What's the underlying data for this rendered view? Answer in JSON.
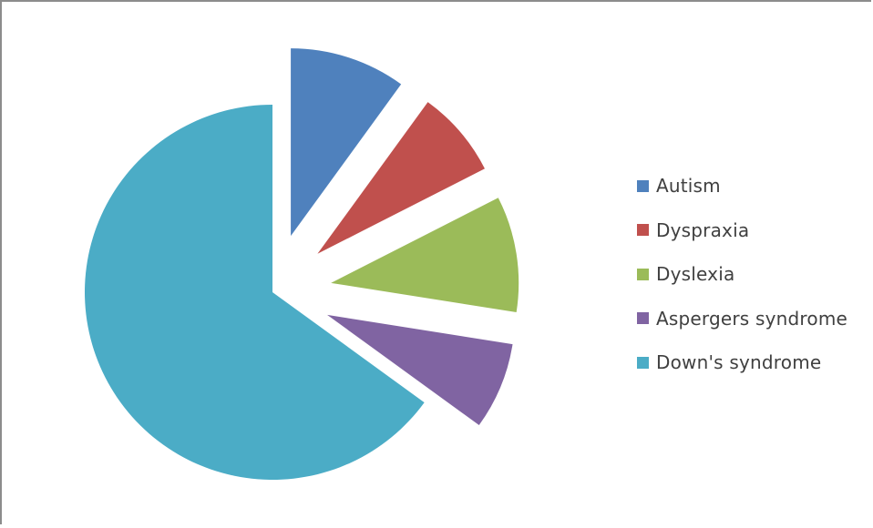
{
  "chart_data": {
    "type": "pie",
    "title": "",
    "exploded": true,
    "legend_position": "right",
    "categories": [
      "Autism",
      "Dyspraxia",
      "Dyslexia",
      "Aspergers syndrome",
      "Down's syndrome"
    ],
    "values": [
      10,
      7.5,
      10,
      7.5,
      65
    ],
    "colors": [
      "#4F81BD",
      "#C0504D",
      "#9BBB59",
      "#8064A2",
      "#4BACC6"
    ]
  }
}
